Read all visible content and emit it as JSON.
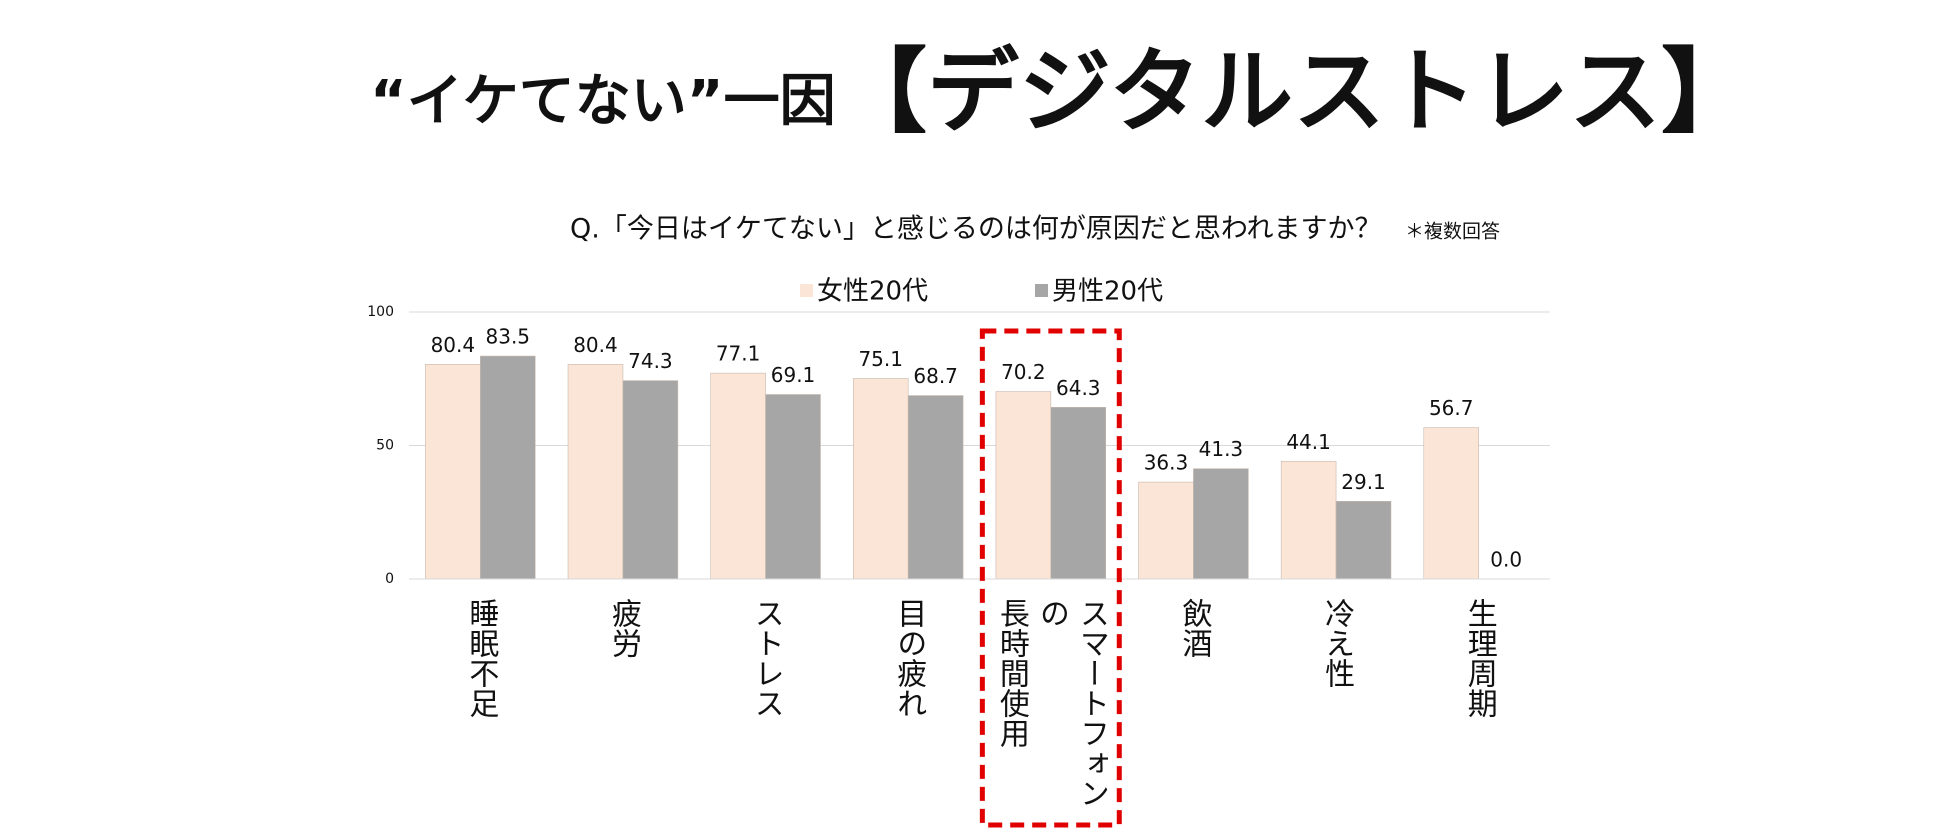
{
  "chart_data": {
    "type": "bar",
    "title": "“イケてない”一因",
    "title_emphasis": "【デジタルストレス】",
    "subtitle": "Q.「今日はイケてない」と感じるのは何が原因だと思われますか？",
    "note": "＊複数回答",
    "categories": [
      "睡眠不足",
      "疲労",
      "ストレス",
      "目の疲れ",
      "スマートフォンの\n長時間使用",
      "飲酒",
      "冷え性",
      "生理周期"
    ],
    "series": [
      {
        "name": "女性20代",
        "color": "#fbe5d6",
        "values": [
          80.4,
          80.4,
          77.1,
          75.1,
          70.2,
          36.3,
          44.1,
          56.7
        ]
      },
      {
        "name": "男性20代",
        "color": "#a6a6a6",
        "values": [
          83.5,
          74.3,
          69.1,
          68.7,
          64.3,
          41.3,
          29.1,
          0
        ],
        "value_labels": [
          "83.5",
          "74.3",
          "69.1",
          "68.7",
          "64.3",
          "41.3",
          "29.1",
          "0.0"
        ]
      }
    ],
    "highlight_category": 4,
    "ylim": [
      0,
      100
    ],
    "yticks": [
      0,
      50,
      100
    ],
    "grid": true,
    "legend": "top"
  }
}
